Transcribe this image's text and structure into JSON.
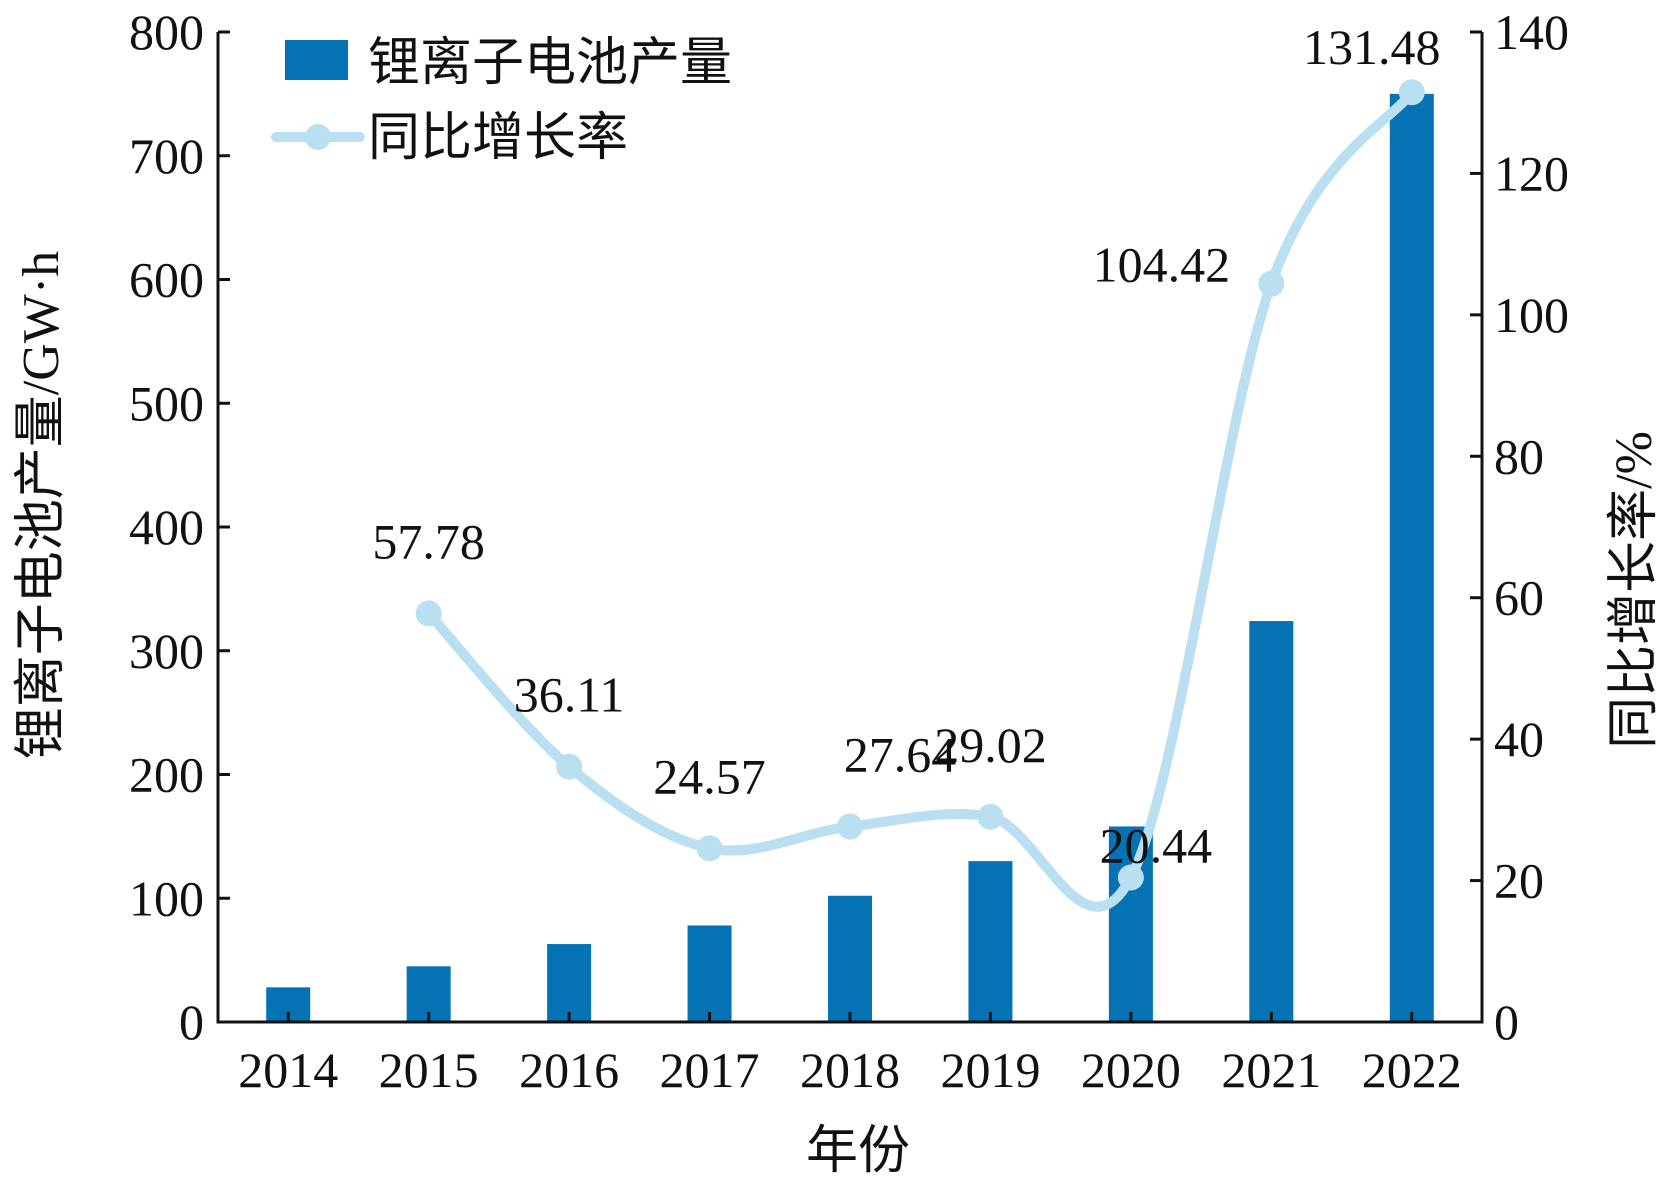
{
  "chart_data": {
    "type": "bar",
    "categories": [
      "2014",
      "2015",
      "2016",
      "2017",
      "2018",
      "2019",
      "2020",
      "2021",
      "2022"
    ],
    "xlabel": "年份",
    "ylabel": "锂离子电池产量/GW·h",
    "y2label": "同比增长率/%",
    "ylim": [
      0,
      800
    ],
    "yticks": [
      0,
      100,
      200,
      300,
      400,
      500,
      600,
      700,
      800
    ],
    "y2lim": [
      0,
      140
    ],
    "y2ticks": [
      0,
      20,
      40,
      60,
      80,
      100,
      120,
      140
    ],
    "legend_position": "top-left",
    "grid": false,
    "series": [
      {
        "name": "锂离子电池产量",
        "type": "bar",
        "axis": "left",
        "color": "#0572b4",
        "values": [
          28,
          45,
          63,
          78,
          102,
          130,
          158,
          324,
          750
        ]
      },
      {
        "name": "同比增长率",
        "type": "line",
        "axis": "right",
        "color": "#b9dff1",
        "values": [
          null,
          57.78,
          36.11,
          24.57,
          27.64,
          29.02,
          20.44,
          104.42,
          131.48
        ],
        "labels": [
          "",
          "57.78",
          "36.11",
          "24.57",
          "27.64",
          "29.02",
          "20.44",
          "104.42",
          "131.48"
        ]
      }
    ]
  }
}
